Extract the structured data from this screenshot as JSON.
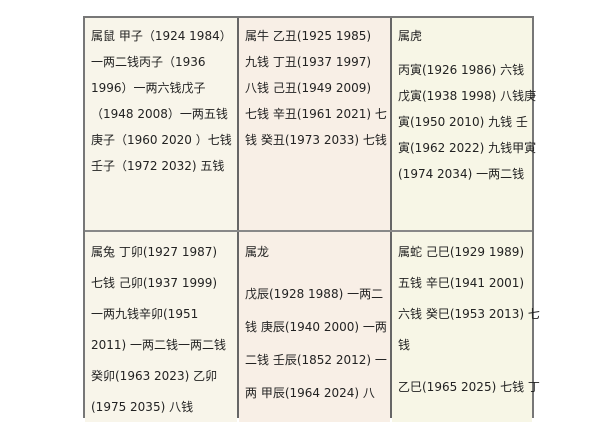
{
  "table": {
    "cells": [
      {
        "lines": [
          "属鼠  甲子（1924 1984）",
          "一两二钱丙子（1936",
          "1996）一两六钱戊子",
          "（1948 2008）一两五钱",
          "庚子（1960 2020  ）七钱",
          "壬子（1972 2032) 五钱"
        ]
      },
      {
        "lines": [
          "属牛   乙丑(1925 1985)",
          "九钱   丁丑(1937 1997)",
          "八钱   己丑(1949 2009)",
          "七钱  辛丑(1961 2021)  七",
          "钱  癸丑(1973 2033)  七钱"
        ]
      },
      {
        "lines": [
          "属虎",
          "丙寅(1926 1986)  六钱",
          "戊寅(1938 1998)  八钱庚",
          "寅(1950 2010)  九钱   壬",
          "寅(1962 2022)  九钱甲寅",
          "(1974 2034)  一两二钱"
        ]
      },
      {
        "lines": [
          "属兔  丁卯(1927 1987)",
          "七钱  己卯(1937 1999)",
          "一两九钱辛卯(1951",
          "2011)  一两二钱一两二钱",
          "癸卯(1963 2023)  乙卯",
          "(1975 2035)  八钱"
        ]
      },
      {
        "lines": [
          "属龙",
          "戊辰(1928 1988)  一两二",
          "钱  庚辰(1940 2000)  一两",
          "二钱  壬辰(1852 2012)  一",
          "两    甲辰(1964 2024)  八"
        ]
      },
      {
        "lines": [
          "属蛇    己巳(1929 1989)",
          "五钱    辛巳(1941 2001)",
          "六钱  癸巳(1953 2013)  七",
          "钱",
          "乙巳(1965 2025)  七钱  丁"
        ]
      }
    ]
  }
}
